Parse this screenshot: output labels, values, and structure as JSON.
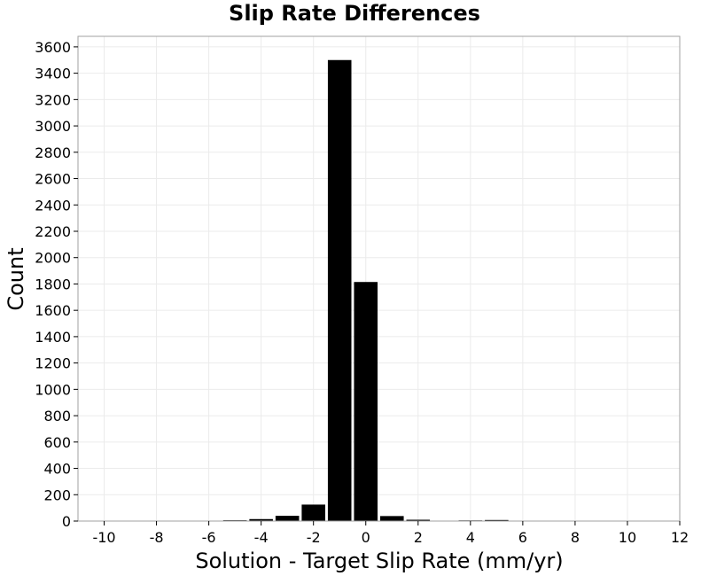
{
  "chart_data": {
    "type": "bar",
    "title": "Slip Rate Differences",
    "xlabel": "Solution - Target Slip Rate (mm/yr)",
    "ylabel": "Count",
    "xlim": [
      -11,
      12
    ],
    "ylim": [
      0,
      3680
    ],
    "xticks": [
      -10,
      -8,
      -6,
      -4,
      -2,
      0,
      2,
      4,
      6,
      8,
      10,
      12
    ],
    "yticks": [
      0,
      200,
      400,
      600,
      800,
      1000,
      1200,
      1400,
      1600,
      1800,
      2000,
      2200,
      2400,
      2600,
      2800,
      3000,
      3200,
      3400,
      3600
    ],
    "bin_width": 1,
    "bar_fraction": 0.9,
    "bars": [
      {
        "x": -10,
        "value": 2
      },
      {
        "x": -9,
        "value": 1
      },
      {
        "x": -8,
        "value": 1
      },
      {
        "x": -7,
        "value": 1
      },
      {
        "x": -6,
        "value": 3
      },
      {
        "x": -5,
        "value": 6
      },
      {
        "x": -4,
        "value": 15
      },
      {
        "x": -3,
        "value": 40
      },
      {
        "x": -2,
        "value": 125
      },
      {
        "x": -1,
        "value": 3500
      },
      {
        "x": 0,
        "value": 1815
      },
      {
        "x": 1,
        "value": 38
      },
      {
        "x": 2,
        "value": 10
      },
      {
        "x": 3,
        "value": 3
      },
      {
        "x": 4,
        "value": 5
      },
      {
        "x": 5,
        "value": 8
      },
      {
        "x": 6,
        "value": 2
      },
      {
        "x": 7,
        "value": 3
      },
      {
        "x": 8,
        "value": 1
      },
      {
        "x": 9,
        "value": 1
      },
      {
        "x": 10,
        "value": 0
      },
      {
        "x": 11,
        "value": 0
      }
    ],
    "grid": true,
    "bar_color": "#000000",
    "background": "#ffffff"
  }
}
